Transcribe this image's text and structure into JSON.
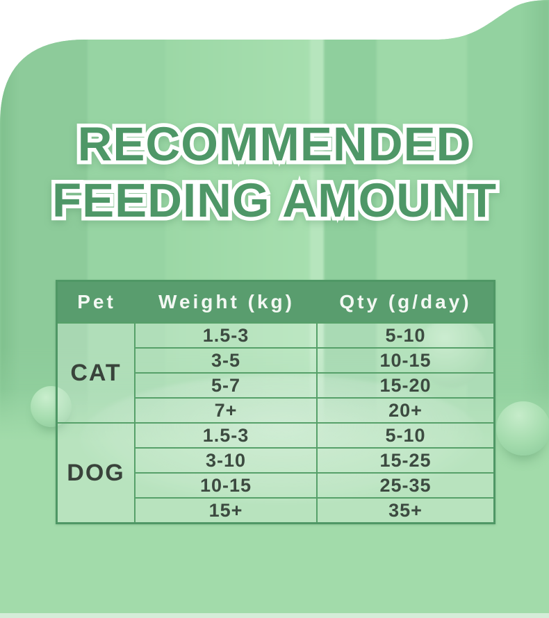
{
  "page": {
    "title_line1": "RECOMMENDED",
    "title_line2": "FEEDING AMOUNT"
  },
  "table": {
    "headers": [
      "Pet",
      "Weight (kg)",
      "Qty (g/day)"
    ],
    "groups": [
      {
        "pet": "CAT",
        "rows": [
          [
            "1.5-3",
            "5-10"
          ],
          [
            "3-5",
            "10-15"
          ],
          [
            "5-7",
            "15-20"
          ],
          [
            "7+",
            "20+"
          ]
        ]
      },
      {
        "pet": "DOG",
        "rows": [
          [
            "1.5-3",
            "5-10"
          ],
          [
            "3-10",
            "15-25"
          ],
          [
            "10-15",
            "25-35"
          ],
          [
            "15+",
            "35+"
          ]
        ]
      }
    ]
  },
  "colors": {
    "background_green": "#94d2a1",
    "header_green": "#599d6e",
    "table_border_green": "#4f9765",
    "title_green": "#4e9767",
    "cell_text": "#3c4a40",
    "top_white": "#ffffff"
  }
}
